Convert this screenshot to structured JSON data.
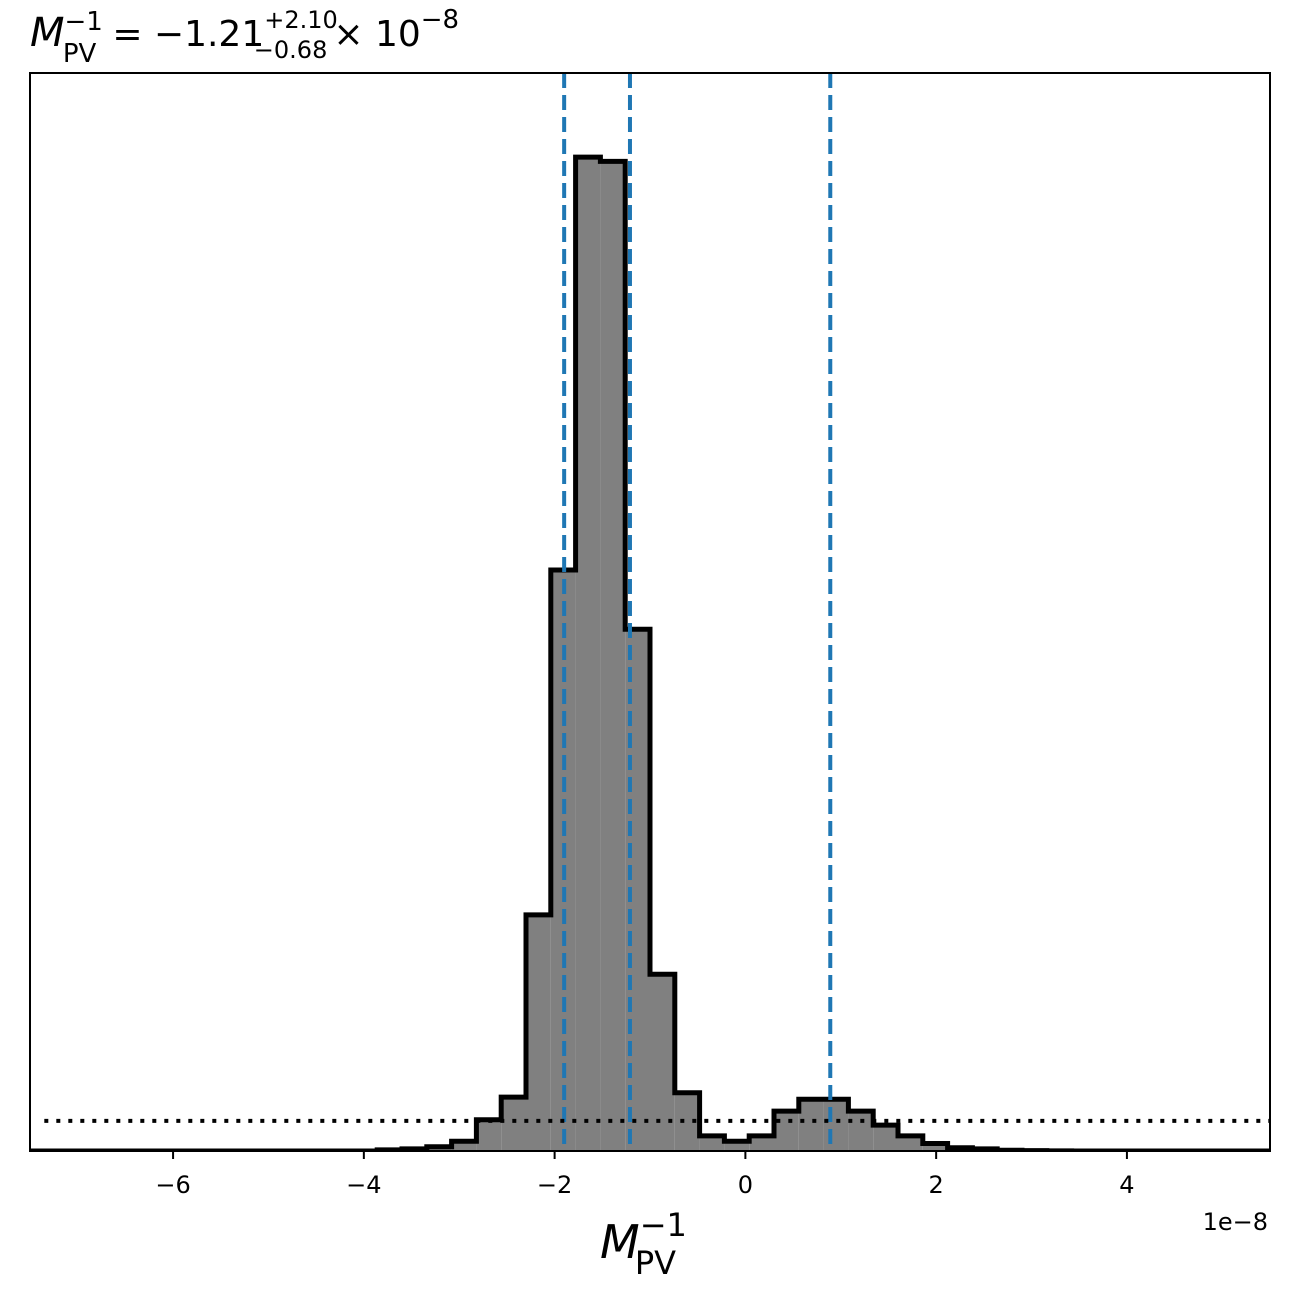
{
  "chart_data": {
    "type": "histogram",
    "title": {
      "symbol": "M",
      "superscript": "−1",
      "subscript": "PV",
      "equals": "= −1.21",
      "upper_error": "+2.10",
      "lower_error": "−0.68",
      "times": "× 10",
      "exponent": "−8"
    },
    "xlabel": {
      "symbol": "M",
      "superscript": "−1",
      "subscript": "PV"
    },
    "offset_text": "1e−8",
    "xlim": [
      -7.5,
      5.5
    ],
    "ylim": [
      0,
      1.0
    ],
    "xticks": [
      -6,
      -4,
      -2,
      0,
      2,
      4
    ],
    "xtick_labels": [
      "−6",
      "−4",
      "−2",
      "0",
      "2",
      "4"
    ],
    "yticks_visible": false,
    "grid": false,
    "bin_edges": [
      -7.5,
      -7.24,
      -6.98,
      -6.72,
      -6.46,
      -6.2,
      -5.94,
      -5.68,
      -5.42,
      -5.16,
      -4.9,
      -4.64,
      -4.38,
      -4.12,
      -3.86,
      -3.6,
      -3.34,
      -3.08,
      -2.82,
      -2.56,
      -2.3,
      -2.04,
      -1.78,
      -1.52,
      -1.26,
      -1.0,
      -0.74,
      -0.48,
      -0.22,
      0.04,
      0.3,
      0.56,
      0.82,
      1.08,
      1.34,
      1.6,
      1.86,
      2.12,
      2.38,
      2.64,
      2.9,
      3.16,
      3.42,
      3.68,
      3.94,
      4.2,
      4.46,
      4.72,
      4.98,
      5.24,
      5.5
    ],
    "counts": [
      0.0,
      0.0,
      0.0,
      0.0,
      0.0,
      0.0,
      0.0,
      0.0,
      0.0,
      0.0,
      0.0,
      0.0,
      0.0,
      0.0,
      0.001,
      0.002,
      0.004,
      0.009,
      0.029,
      0.05,
      0.219,
      0.539,
      0.922,
      0.918,
      0.484,
      0.164,
      0.054,
      0.014,
      0.009,
      0.014,
      0.037,
      0.048,
      0.048,
      0.037,
      0.024,
      0.014,
      0.007,
      0.003,
      0.002,
      0.0007,
      0.0003,
      0.0001,
      0.0,
      0.0,
      0.0,
      0.0,
      0.0,
      0.0,
      0.0,
      0.0
    ],
    "fill_color": "#808080",
    "edge_color": "#000000",
    "vlines": [
      {
        "x": -1.9,
        "style": "dashed",
        "color": "#1f77b4"
      },
      {
        "x": -1.21,
        "style": "dashed",
        "color": "#1f77b4"
      },
      {
        "x": 0.89,
        "style": "dashed",
        "color": "#1f77b4"
      }
    ],
    "prior_line": {
      "y": 0.028,
      "style": "dotted",
      "color": "#000000",
      "x_start": -7.35
    }
  }
}
